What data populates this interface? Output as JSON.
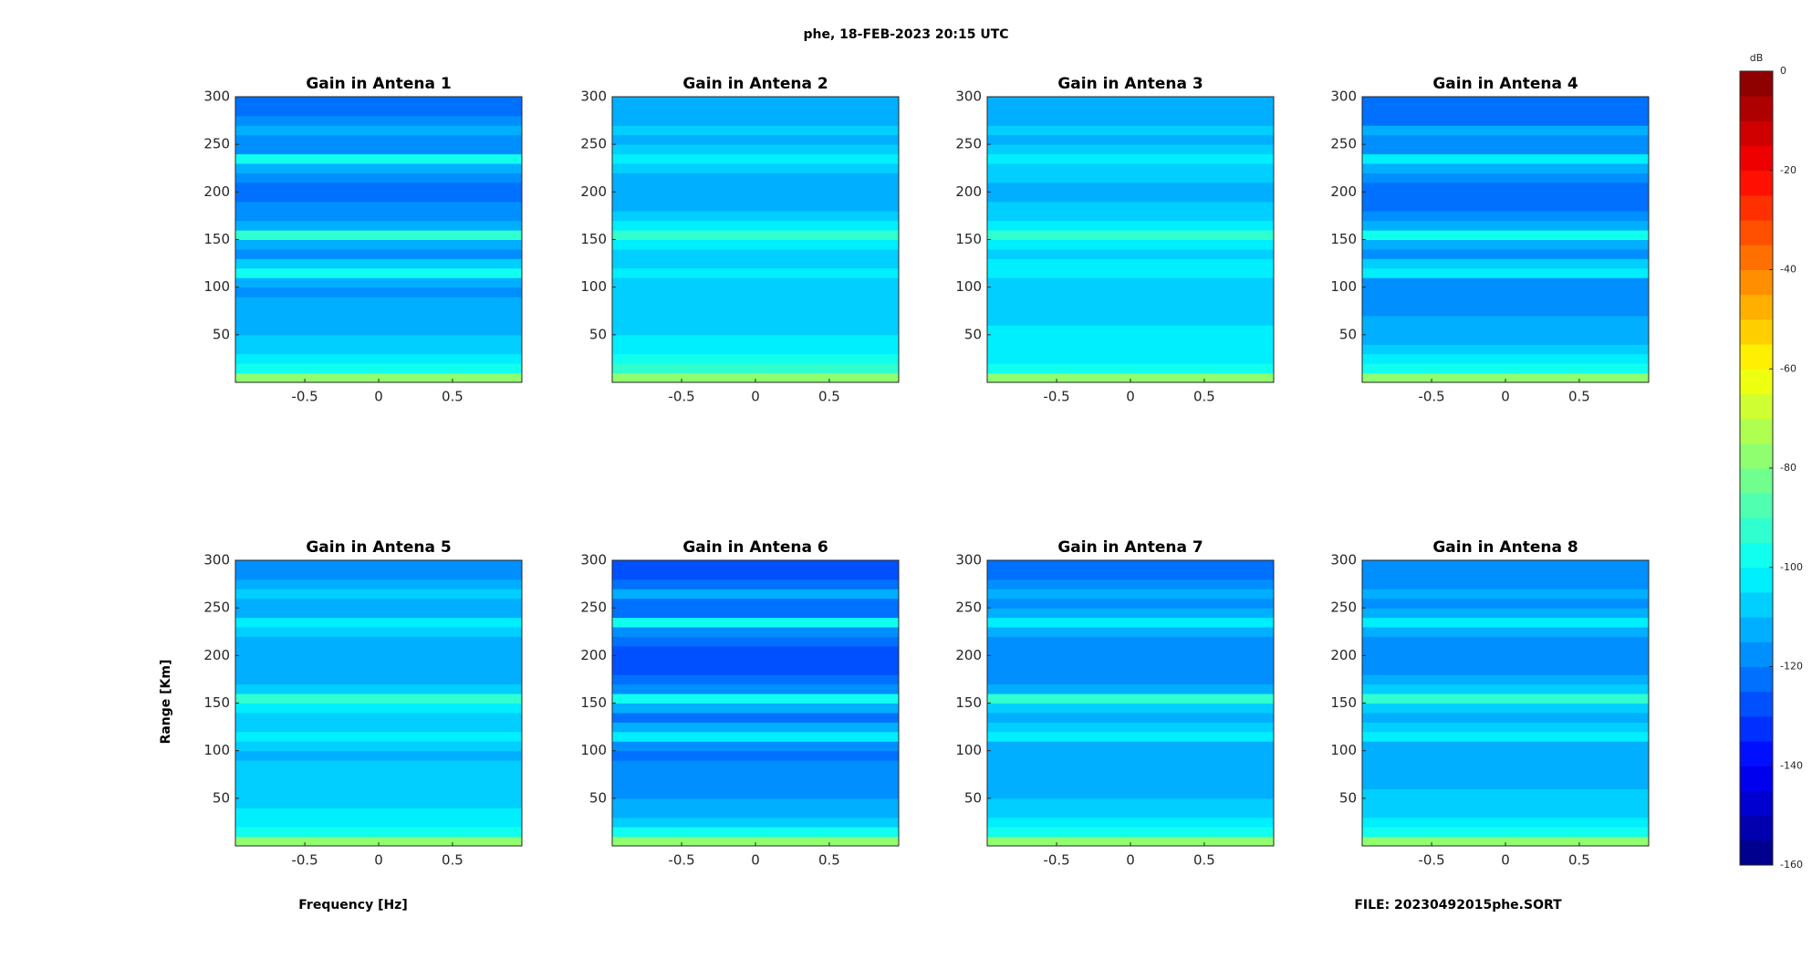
{
  "title": "phe, 18-FEB-2023 20:15 UTC",
  "xlabel": "Frequency [Hz]",
  "ylabel": "Range [Km]",
  "file": "FILE: 20230492015phe.SORT",
  "colorbar": {
    "label": "dB",
    "clim": [
      -160,
      0
    ],
    "levels": 32,
    "ticks": [
      0,
      -20,
      -40,
      -60,
      -80,
      -100,
      -120,
      -140,
      -160
    ]
  },
  "chart_data": [
    {
      "type": "heatmap",
      "title": "Gain in Antena 1",
      "xlim": [
        -0.97,
        0.97
      ],
      "xticks": [
        -0.5,
        0,
        0.5
      ],
      "ylim": [
        0,
        300
      ],
      "yticks": [
        50,
        100,
        150,
        200,
        250,
        300
      ],
      "y": [
        5,
        15,
        25,
        35,
        45,
        55,
        65,
        75,
        85,
        95,
        105,
        115,
        125,
        135,
        145,
        155,
        165,
        175,
        185,
        195,
        205,
        215,
        225,
        235,
        245,
        255,
        265,
        275,
        285,
        295
      ],
      "values": [
        -78,
        -98,
        -104,
        -108,
        -110,
        -112,
        -114,
        -114,
        -115,
        -116,
        -115,
        -100,
        -108,
        -116,
        -112,
        -95,
        -112,
        -118,
        -120,
        -121,
        -121,
        -119,
        -112,
        -100,
        -116,
        -119,
        -112,
        -120,
        -122,
        -123
      ]
    },
    {
      "type": "heatmap",
      "title": "Gain in Antena 2",
      "xlim": [
        -0.97,
        0.97
      ],
      "xticks": [
        -0.5,
        0,
        0.5
      ],
      "ylim": [
        0,
        300
      ],
      "yticks": [
        50,
        100,
        150,
        200,
        250,
        300
      ],
      "y": [
        5,
        15,
        25,
        35,
        45,
        55,
        65,
        75,
        85,
        95,
        105,
        115,
        125,
        135,
        145,
        155,
        165,
        175,
        185,
        195,
        205,
        215,
        225,
        235,
        245,
        255,
        265,
        275,
        285,
        295
      ],
      "values": [
        -76,
        -95,
        -100,
        -103,
        -104,
        -106,
        -107,
        -108,
        -108,
        -109,
        -108,
        -104,
        -106,
        -108,
        -104,
        -94,
        -105,
        -110,
        -111,
        -112,
        -112,
        -111,
        -108,
        -105,
        -110,
        -112,
        -110,
        -113,
        -114,
        -115
      ]
    },
    {
      "type": "heatmap",
      "title": "Gain in Antena 3",
      "xlim": [
        -0.97,
        0.97
      ],
      "xticks": [
        -0.5,
        0,
        0.5
      ],
      "ylim": [
        0,
        300
      ],
      "yticks": [
        50,
        100,
        150,
        200,
        250,
        300
      ],
      "y": [
        5,
        15,
        25,
        35,
        45,
        55,
        65,
        75,
        85,
        95,
        105,
        115,
        125,
        135,
        145,
        155,
        165,
        175,
        185,
        195,
        205,
        215,
        225,
        235,
        245,
        255,
        265,
        275,
        285,
        295
      ],
      "values": [
        -77,
        -96,
        -101,
        -103,
        -104,
        -105,
        -106,
        -107,
        -107,
        -108,
        -108,
        -103,
        -105,
        -107,
        -103,
        -93,
        -104,
        -109,
        -110,
        -111,
        -111,
        -110,
        -107,
        -104,
        -109,
        -111,
        -109,
        -112,
        -113,
        -114
      ]
    },
    {
      "type": "heatmap",
      "title": "Gain in Antena 4",
      "xlim": [
        -0.97,
        0.97
      ],
      "xticks": [
        -0.5,
        0,
        0.5
      ],
      "ylim": [
        0,
        300
      ],
      "yticks": [
        50,
        100,
        150,
        200,
        250,
        300
      ],
      "y": [
        5,
        15,
        25,
        35,
        45,
        55,
        65,
        75,
        85,
        95,
        105,
        115,
        125,
        135,
        145,
        155,
        165,
        175,
        185,
        195,
        205,
        215,
        225,
        235,
        245,
        255,
        265,
        275,
        285,
        295
      ],
      "values": [
        -79,
        -99,
        -105,
        -109,
        -111,
        -113,
        -115,
        -116,
        -116,
        -117,
        -116,
        -102,
        -109,
        -117,
        -113,
        -97,
        -113,
        -119,
        -121,
        -122,
        -122,
        -120,
        -113,
        -102,
        -117,
        -120,
        -113,
        -121,
        -123,
        -124
      ]
    },
    {
      "type": "heatmap",
      "title": "Gain in Antena 5",
      "xlim": [
        -0.97,
        0.97
      ],
      "xticks": [
        -0.5,
        0,
        0.5
      ],
      "ylim": [
        0,
        300
      ],
      "yticks": [
        50,
        100,
        150,
        200,
        250,
        300
      ],
      "y": [
        5,
        15,
        25,
        35,
        45,
        55,
        65,
        75,
        85,
        95,
        105,
        115,
        125,
        135,
        145,
        155,
        165,
        175,
        185,
        195,
        205,
        215,
        225,
        235,
        245,
        255,
        265,
        275,
        285,
        295
      ],
      "values": [
        -77,
        -97,
        -102,
        -105,
        -107,
        -108,
        -109,
        -110,
        -110,
        -111,
        -110,
        -102,
        -106,
        -110,
        -105,
        -92,
        -107,
        -112,
        -113,
        -114,
        -114,
        -113,
        -109,
        -103,
        -111,
        -113,
        -110,
        -114,
        -116,
        -117
      ]
    },
    {
      "type": "heatmap",
      "title": "Gain in Antena 6",
      "xlim": [
        -0.97,
        0.97
      ],
      "xticks": [
        -0.5,
        0,
        0.5
      ],
      "ylim": [
        0,
        300
      ],
      "yticks": [
        50,
        100,
        150,
        200,
        250,
        300
      ],
      "y": [
        5,
        15,
        25,
        35,
        45,
        55,
        65,
        75,
        85,
        95,
        105,
        115,
        125,
        135,
        145,
        155,
        165,
        175,
        185,
        195,
        205,
        215,
        225,
        235,
        245,
        255,
        265,
        275,
        285,
        295
      ],
      "values": [
        -80,
        -100,
        -107,
        -111,
        -114,
        -116,
        -118,
        -119,
        -120,
        -121,
        -119,
        -101,
        -112,
        -121,
        -115,
        -98,
        -117,
        -123,
        -126,
        -127,
        -127,
        -125,
        -116,
        -100,
        -121,
        -124,
        -114,
        -125,
        -127,
        -128
      ]
    },
    {
      "type": "heatmap",
      "title": "Gain in Antena 7",
      "xlim": [
        -0.97,
        0.97
      ],
      "xticks": [
        -0.5,
        0,
        0.5
      ],
      "ylim": [
        0,
        300
      ],
      "yticks": [
        50,
        100,
        150,
        200,
        250,
        300
      ],
      "y": [
        5,
        15,
        25,
        35,
        45,
        55,
        65,
        75,
        85,
        95,
        105,
        115,
        125,
        135,
        145,
        155,
        165,
        175,
        185,
        195,
        205,
        215,
        225,
        235,
        245,
        255,
        265,
        275,
        285,
        295
      ],
      "values": [
        -79,
        -98,
        -104,
        -107,
        -109,
        -111,
        -112,
        -113,
        -114,
        -115,
        -114,
        -101,
        -108,
        -115,
        -109,
        -95,
        -111,
        -116,
        -118,
        -119,
        -119,
        -118,
        -112,
        -101,
        -115,
        -118,
        -112,
        -119,
        -121,
        -122
      ]
    },
    {
      "type": "heatmap",
      "title": "Gain in Antena 8",
      "xlim": [
        -0.97,
        0.97
      ],
      "xticks": [
        -0.5,
        0,
        0.5
      ],
      "ylim": [
        0,
        300
      ],
      "yticks": [
        50,
        100,
        150,
        200,
        250,
        300
      ],
      "y": [
        5,
        15,
        25,
        35,
        45,
        55,
        65,
        75,
        85,
        95,
        105,
        115,
        125,
        135,
        145,
        155,
        165,
        175,
        185,
        195,
        205,
        215,
        225,
        235,
        245,
        255,
        265,
        275,
        285,
        295
      ],
      "values": [
        -78,
        -98,
        -103,
        -106,
        -108,
        -110,
        -111,
        -112,
        -112,
        -113,
        -112,
        -103,
        -107,
        -112,
        -107,
        -94,
        -109,
        -114,
        -116,
        -117,
        -117,
        -116,
        -111,
        -104,
        -113,
        -116,
        -111,
        -117,
        -119,
        -120
      ]
    }
  ]
}
